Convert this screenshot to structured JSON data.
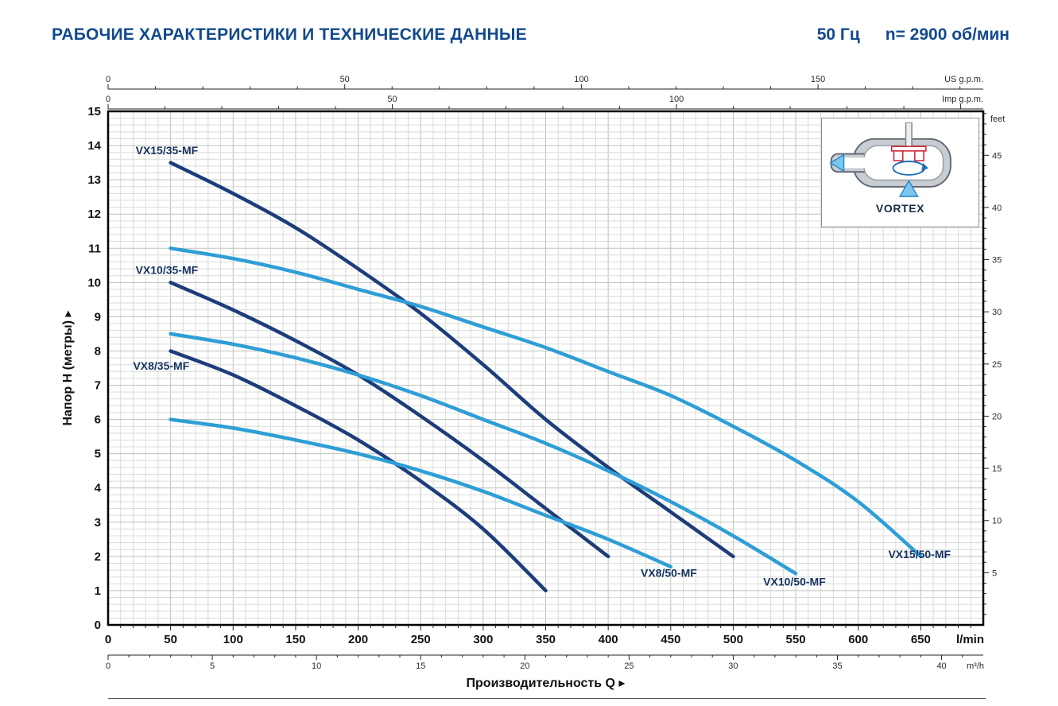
{
  "header": {
    "title": "РАБОЧИЕ ХАРАКТЕРИСТИКИ И ТЕХНИЧЕСКИЕ ДАННЫЕ",
    "frequency": "50 Гц",
    "speed": "n= 2900 об/мин"
  },
  "inset": {
    "label": "VORTEX"
  },
  "colors": {
    "navy": "#1d3d7a",
    "light_blue": "#2e9ed6",
    "label_navy": "#16335f",
    "grid_minor": "#d8dcd8",
    "grid_major": "#bdc2bd"
  },
  "chart_data": {
    "type": "line",
    "xlabel": "Производительность Q",
    "ylabel": "Напор H (метры)",
    "x_unit_primary": "l/min",
    "y_unit_primary": "метры",
    "x_range_lmin": [
      0,
      700
    ],
    "y_range_m": [
      0,
      15
    ],
    "grid": "on",
    "axes": {
      "lmin": {
        "label": "l/min",
        "major": 50,
        "minor": 10,
        "label_max": 650
      },
      "m3h": {
        "label": "m³/h",
        "major": 5,
        "minor": 1,
        "label_max": 40,
        "to_lmin": 16.6667
      },
      "us_gpm": {
        "label": "US g.p.m.",
        "major": 50,
        "minor": 10,
        "label_max": 150,
        "to_lmin": 3.78541
      },
      "imp_gpm": {
        "label": "Imp g.p.m.",
        "major": 50,
        "minor": 10,
        "label_max": 100,
        "to_lmin": 4.54609
      },
      "meters": {
        "major": 1,
        "label_min": 0,
        "label_max": 15
      },
      "feet": {
        "label": "feet",
        "major": 5,
        "minor": 1,
        "label_min": 5,
        "label_max": 45,
        "to_m": 0.3048
      }
    },
    "series": [
      {
        "name": "VX15/35-MF",
        "color": "navy",
        "points": [
          [
            50,
            13.5
          ],
          [
            100,
            12.6
          ],
          [
            150,
            11.6
          ],
          [
            200,
            10.4
          ],
          [
            250,
            9.1
          ],
          [
            300,
            7.6
          ],
          [
            350,
            6.0
          ],
          [
            400,
            4.6
          ],
          [
            450,
            3.3
          ],
          [
            500,
            2.0
          ]
        ],
        "label_pos": [
          22,
          13.75
        ]
      },
      {
        "name": "VX10/35-MF",
        "color": "navy",
        "points": [
          [
            50,
            10.0
          ],
          [
            100,
            9.2
          ],
          [
            150,
            8.3
          ],
          [
            200,
            7.3
          ],
          [
            250,
            6.1
          ],
          [
            300,
            4.8
          ],
          [
            350,
            3.4
          ],
          [
            400,
            2.0
          ]
        ],
        "label_pos": [
          22,
          10.25
        ]
      },
      {
        "name": "VX8/35-MF",
        "color": "navy",
        "points": [
          [
            50,
            8.0
          ],
          [
            100,
            7.3
          ],
          [
            150,
            6.4
          ],
          [
            200,
            5.4
          ],
          [
            250,
            4.2
          ],
          [
            300,
            2.8
          ],
          [
            350,
            1.0
          ]
        ],
        "label_pos": [
          20,
          7.45
        ]
      },
      {
        "name": "VX15/50-MF",
        "color": "light_blue",
        "points": [
          [
            50,
            11.0
          ],
          [
            100,
            10.7
          ],
          [
            150,
            10.3
          ],
          [
            200,
            9.8
          ],
          [
            250,
            9.3
          ],
          [
            300,
            8.7
          ],
          [
            350,
            8.1
          ],
          [
            400,
            7.4
          ],
          [
            450,
            6.7
          ],
          [
            500,
            5.8
          ],
          [
            550,
            4.8
          ],
          [
            600,
            3.6
          ],
          [
            650,
            2.0
          ]
        ],
        "label_pos": [
          624,
          1.95
        ]
      },
      {
        "name": "VX10/50-MF",
        "color": "light_blue",
        "points": [
          [
            50,
            8.5
          ],
          [
            100,
            8.2
          ],
          [
            150,
            7.8
          ],
          [
            200,
            7.3
          ],
          [
            250,
            6.7
          ],
          [
            300,
            6.0
          ],
          [
            350,
            5.3
          ],
          [
            400,
            4.5
          ],
          [
            450,
            3.6
          ],
          [
            500,
            2.6
          ],
          [
            550,
            1.5
          ]
        ],
        "label_pos": [
          524,
          1.15
        ]
      },
      {
        "name": "VX8/50-MF",
        "color": "light_blue",
        "points": [
          [
            50,
            6.0
          ],
          [
            100,
            5.75
          ],
          [
            150,
            5.4
          ],
          [
            200,
            5.0
          ],
          [
            250,
            4.5
          ],
          [
            300,
            3.9
          ],
          [
            350,
            3.2
          ],
          [
            400,
            2.5
          ],
          [
            450,
            1.7
          ]
        ],
        "label_pos": [
          426,
          1.4
        ]
      }
    ]
  }
}
